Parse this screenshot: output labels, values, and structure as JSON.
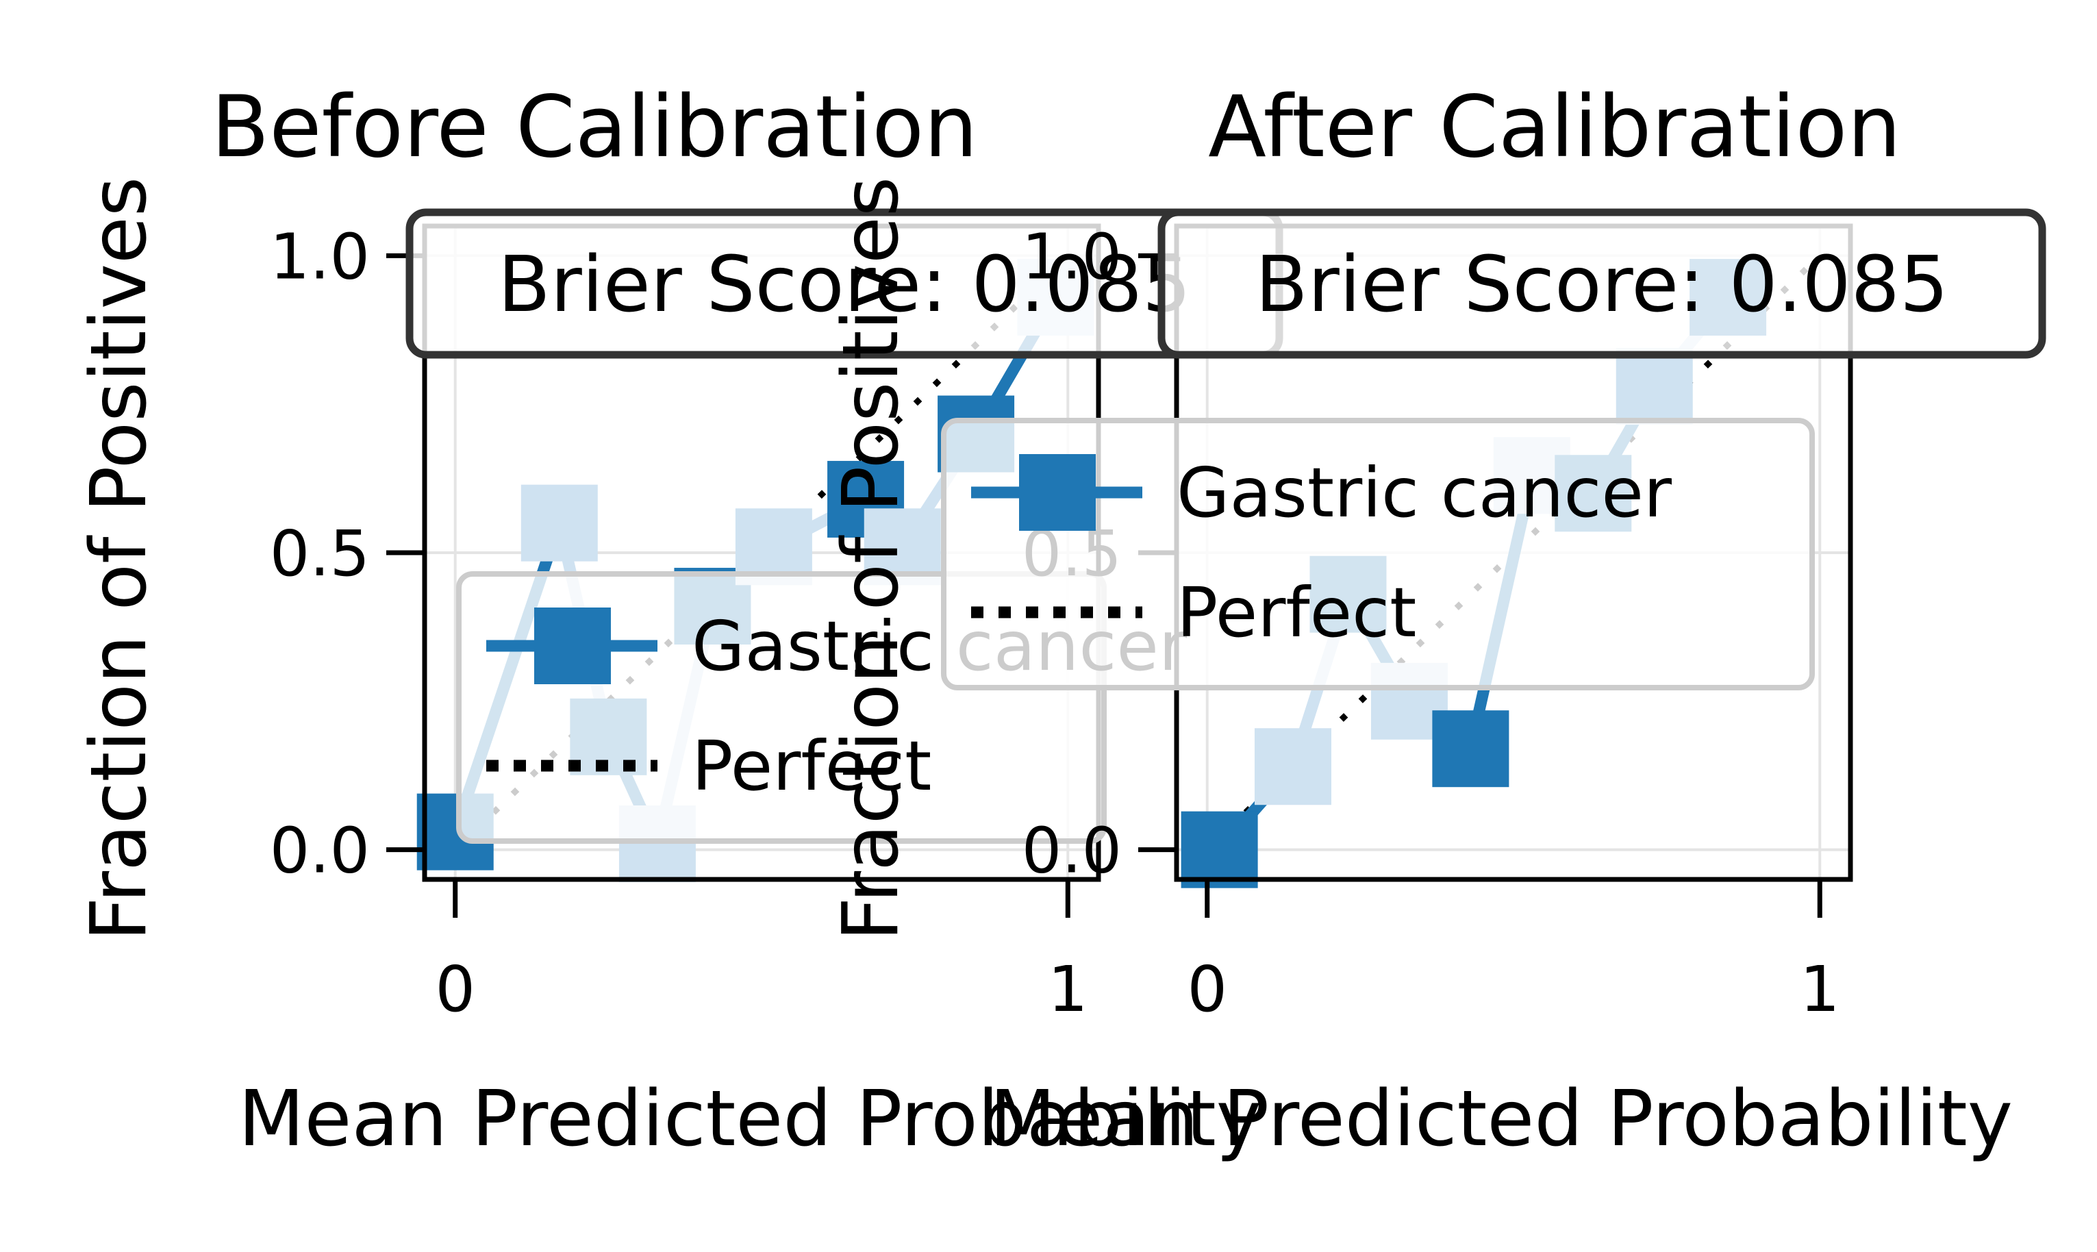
{
  "chart_data": [
    {
      "type": "line",
      "title": "Before Calibration",
      "xlabel": "Mean Predicted Probability",
      "ylabel": "Fraction of Positives",
      "xlim": [
        -0.05,
        1.05
      ],
      "ylim": [
        -0.05,
        1.05
      ],
      "xticks": [
        {
          "v": 0,
          "label": "0"
        },
        {
          "v": 1,
          "label": "1"
        }
      ],
      "yticks": [
        {
          "v": 0,
          "label": "0.0"
        },
        {
          "v": 0.5,
          "label": "0.5"
        },
        {
          "v": 1,
          "label": "1.0"
        }
      ],
      "grid": true,
      "annotation": "Brier Score: 0.085",
      "legend_position": "lower-left",
      "series": [
        {
          "name": "Gastric cancer",
          "color": "#1f77b4",
          "marker": "square",
          "alternating_shades": true,
          "x": [
            0.0,
            0.17,
            0.25,
            0.33,
            0.42,
            0.52,
            0.67,
            0.73,
            0.85,
            0.98
          ],
          "y": [
            0.03,
            0.55,
            0.19,
            0.01,
            0.41,
            0.51,
            0.59,
            0.51,
            0.7,
            0.93
          ]
        },
        {
          "name": "Perfect",
          "color": "#000000",
          "style": "dotted",
          "x": [
            0,
            1
          ],
          "y": [
            0,
            1
          ]
        }
      ]
    },
    {
      "type": "line",
      "title": "After Calibration",
      "xlabel": "Mean Predicted Probability",
      "ylabel": "Fraction of Positives",
      "xlim": [
        -0.05,
        1.05
      ],
      "ylim": [
        -0.05,
        1.05
      ],
      "xticks": [
        {
          "v": 0,
          "label": "0"
        },
        {
          "v": 1,
          "label": "1"
        }
      ],
      "yticks": [
        {
          "v": 0,
          "label": "0.0"
        },
        {
          "v": 0.5,
          "label": "0.5"
        },
        {
          "v": 1,
          "label": "1.0"
        }
      ],
      "grid": true,
      "annotation": "Brier Score: 0.085",
      "legend_position": "center-right",
      "series": [
        {
          "name": "Gastric cancer",
          "color": "#1f77b4",
          "marker": "square",
          "alternating_shades": true,
          "x": [
            0.02,
            0.14,
            0.23,
            0.33,
            0.43,
            0.53,
            0.63,
            0.73,
            0.85
          ],
          "y": [
            0.0,
            0.14,
            0.43,
            0.25,
            0.17,
            0.63,
            0.6,
            0.78,
            0.93
          ]
        },
        {
          "name": "Perfect",
          "color": "#000000",
          "style": "dotted",
          "x": [
            0,
            1
          ],
          "y": [
            0,
            1
          ]
        }
      ]
    }
  ]
}
